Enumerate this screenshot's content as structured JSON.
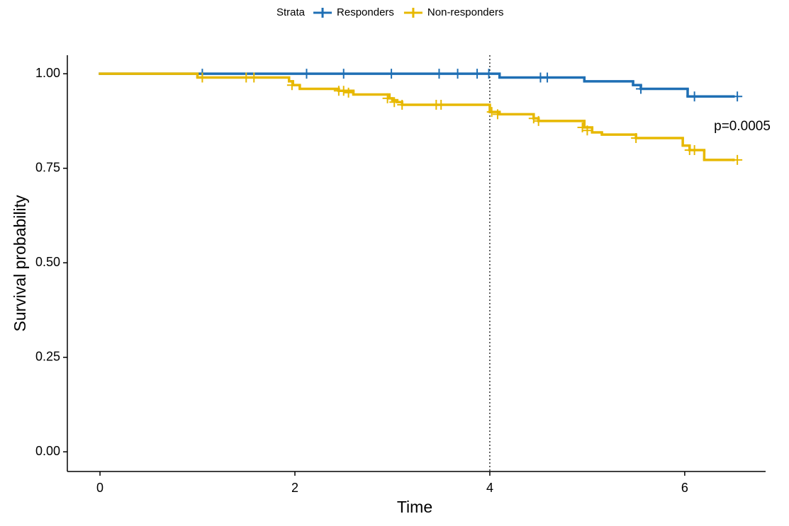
{
  "chart_data": {
    "type": "step",
    "xlabel": "Time",
    "ylabel": "Survival probability",
    "legend_title": "Strata",
    "legend_position": "top",
    "annotation": "p=0.0005",
    "annotation_x": 6.3,
    "annotation_y": 0.86,
    "reference_x": 4,
    "xlim": [
      -0.335,
      6.83
    ],
    "xticks": [
      0,
      2,
      4,
      6
    ],
    "ylim": [
      -0.052,
      1.049
    ],
    "yticks": [
      {
        "value": 0,
        "label": "0.00"
      },
      {
        "value": 0.25,
        "label": "0.25"
      },
      {
        "value": 0.5,
        "label": "0.50"
      },
      {
        "value": 0.75,
        "label": "0.75"
      },
      {
        "value": 1,
        "label": "1.00"
      }
    ],
    "series": [
      {
        "name": "Responders",
        "color": "#1f6fb4",
        "x": [
          0,
          4.1,
          4.97,
          5.47,
          5.55,
          6.03,
          6.5
        ],
        "values": [
          1,
          0.99,
          0.98,
          0.97,
          0.96,
          0.94,
          0.94
        ],
        "censored_x": [
          1.05,
          2.12,
          2.5,
          2.99,
          3.48,
          3.67,
          3.87,
          3.99,
          4.52,
          4.59,
          5.55,
          6.1,
          6.54
        ],
        "censored_values": [
          1,
          1,
          1,
          1,
          1,
          1,
          1,
          1,
          0.99,
          0.99,
          0.96,
          0.94,
          0.94
        ]
      },
      {
        "name": "Non-responders",
        "color": "#e7b800",
        "x": [
          0,
          1.0,
          1.94,
          1.98,
          2.05,
          2.45,
          2.6,
          2.97,
          3.0,
          3.05,
          3.1,
          4.0,
          4.1,
          4.45,
          4.5,
          4.97,
          5.05,
          5.15,
          5.5,
          5.98,
          6.05,
          6.2,
          6.5
        ],
        "values": [
          1,
          0.99,
          0.98,
          0.97,
          0.96,
          0.955,
          0.945,
          0.935,
          0.93,
          0.925,
          0.918,
          0.899,
          0.893,
          0.882,
          0.875,
          0.858,
          0.845,
          0.839,
          0.83,
          0.81,
          0.798,
          0.772,
          0.772
        ],
        "censored_x": [
          1.05,
          1.5,
          1.58,
          1.97,
          2.45,
          2.5,
          2.55,
          2.95,
          3.02,
          3.1,
          3.45,
          3.5,
          4.02,
          4.08,
          4.45,
          4.5,
          4.95,
          5.0,
          5.5,
          6.05,
          6.1,
          6.54
        ],
        "censored_values": [
          0.99,
          0.99,
          0.99,
          0.97,
          0.955,
          0.955,
          0.95,
          0.935,
          0.925,
          0.918,
          0.918,
          0.918,
          0.899,
          0.893,
          0.882,
          0.875,
          0.858,
          0.85,
          0.83,
          0.798,
          0.798,
          0.772
        ]
      }
    ]
  }
}
